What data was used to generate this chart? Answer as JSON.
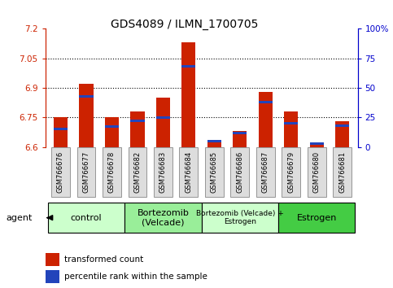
{
  "title": "GDS4089 / ILMN_1700705",
  "samples": [
    "GSM766676",
    "GSM766677",
    "GSM766678",
    "GSM766682",
    "GSM766683",
    "GSM766684",
    "GSM766685",
    "GSM766686",
    "GSM766687",
    "GSM766679",
    "GSM766680",
    "GSM766681"
  ],
  "red_values": [
    6.75,
    6.92,
    6.75,
    6.78,
    6.85,
    7.13,
    6.63,
    6.68,
    6.88,
    6.78,
    6.61,
    6.73
  ],
  "blue_values_pct": [
    15,
    43,
    17,
    22,
    25,
    68,
    5,
    12,
    38,
    20,
    3,
    18
  ],
  "ymin": 6.6,
  "ymax": 7.2,
  "yticks": [
    6.6,
    6.75,
    6.9,
    7.05,
    7.2
  ],
  "ytick_labels": [
    "6.6",
    "6.75",
    "6.9",
    "7.05",
    "7.2"
  ],
  "y2min": 0,
  "y2max": 100,
  "y2ticks": [
    0,
    25,
    50,
    75,
    100
  ],
  "y2tick_labels": [
    "0",
    "25",
    "50",
    "75",
    "100%"
  ],
  "groups": [
    {
      "label": "control",
      "start": 0,
      "end": 3,
      "color": "#ccffcc",
      "fontsize": 8
    },
    {
      "label": "Bortezomib\n(Velcade)",
      "start": 3,
      "end": 6,
      "color": "#99ee99",
      "fontsize": 8
    },
    {
      "label": "Bortezomib (Velcade) +\nEstrogen",
      "start": 6,
      "end": 9,
      "color": "#ccffcc",
      "fontsize": 6.5
    },
    {
      "label": "Estrogen",
      "start": 9,
      "end": 12,
      "color": "#44cc44",
      "fontsize": 8
    }
  ],
  "legend_red_label": "transformed count",
  "legend_blue_label": "percentile rank within the sample",
  "agent_label": "agent",
  "bar_width": 0.55,
  "red_color": "#cc2200",
  "blue_color": "#2244bb",
  "bg_color": "#ffffff",
  "left_axis_color": "#cc2200",
  "right_axis_color": "#0000cc",
  "xtick_box_color": "#dddddd",
  "xtick_box_edge": "#888888"
}
